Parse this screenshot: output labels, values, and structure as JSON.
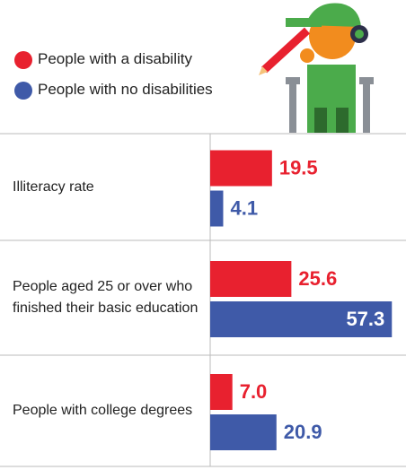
{
  "chart_data": {
    "type": "bar",
    "orientation": "horizontal",
    "categories": [
      "Illiteracy rate",
      "People aged 25 or over who finished their basic education",
      "People with college degrees"
    ],
    "series": [
      {
        "name": "People with a disability",
        "color": "#e8212f",
        "values": [
          19.5,
          25.6,
          7.0
        ],
        "value_labels": [
          "19.5",
          "25.6",
          "7.0"
        ]
      },
      {
        "name": "People with no disabilities",
        "color": "#3f5aa8",
        "values": [
          4.1,
          57.3,
          20.9
        ]
      }
    ]
  }
}
